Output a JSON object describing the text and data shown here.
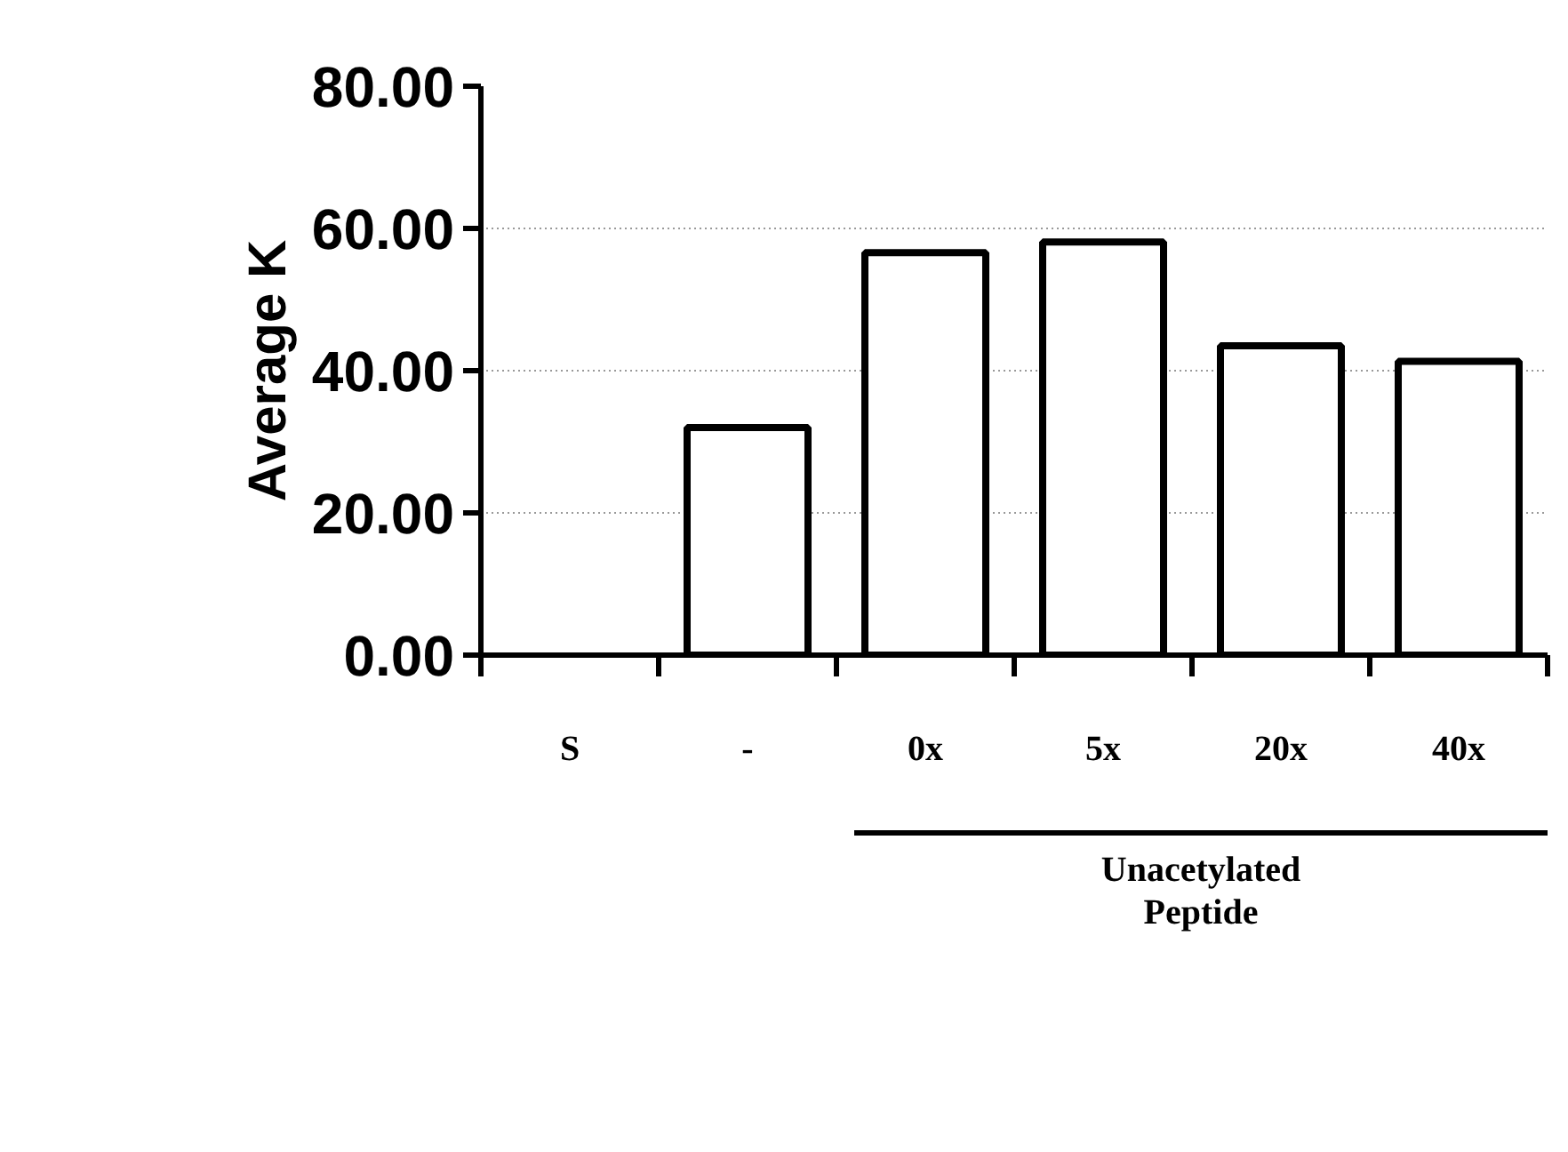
{
  "chart_data": {
    "type": "bar",
    "ylabel": "Average K",
    "categories": [
      "S",
      "-",
      "0x",
      "5x",
      "20x",
      "40x"
    ],
    "values": [
      null,
      32,
      56.6,
      58.1,
      43.5,
      41.3
    ],
    "color": "#ffffff",
    "ylim": [
      0,
      80
    ],
    "yticks": [
      {
        "value": 0,
        "label": "0.00"
      },
      {
        "value": 20,
        "label": "20.00"
      },
      {
        "value": 40,
        "label": "40.00"
      },
      {
        "value": 60,
        "label": "60.00"
      },
      {
        "value": 80,
        "label": "80.00"
      }
    ],
    "grid": "y",
    "annotations": [
      "Unacetylated Peptide"
    ]
  }
}
